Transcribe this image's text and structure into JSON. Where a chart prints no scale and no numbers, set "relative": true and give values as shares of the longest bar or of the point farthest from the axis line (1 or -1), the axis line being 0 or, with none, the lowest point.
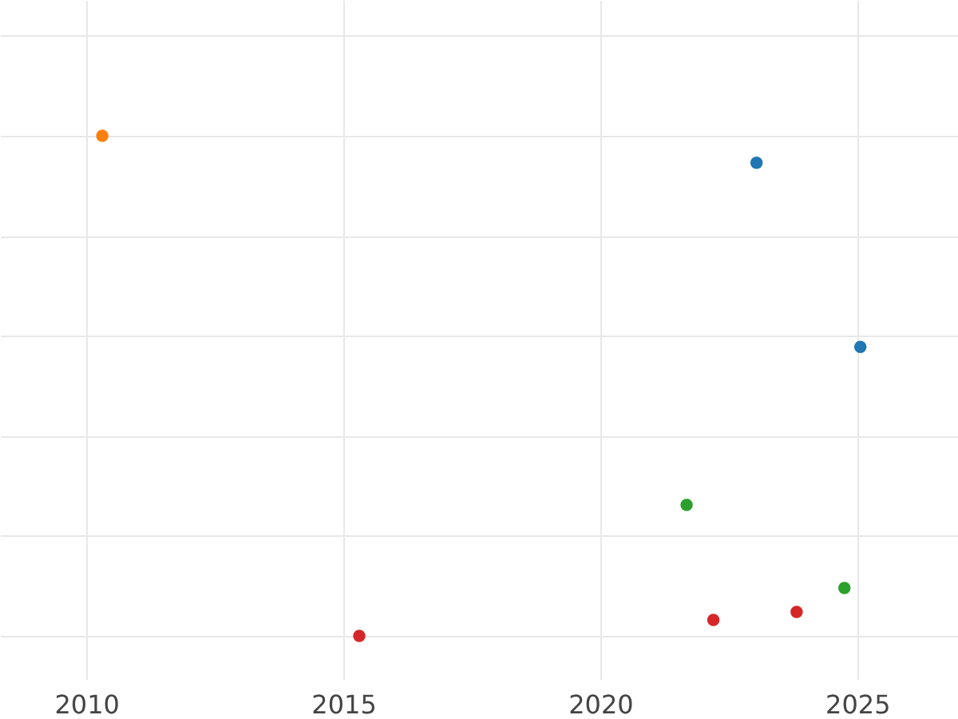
{
  "chart_data": {
    "type": "scatter",
    "relative": true,
    "xlim": [
      2008.32,
      2026.96
    ],
    "xticks": [
      2010,
      2015,
      2020,
      2025
    ],
    "tick_labels": "x",
    "grid": true,
    "legend": false,
    "marker": "circle",
    "series": [
      {
        "color": "#ff7f0e",
        "x": [
          2010.31
        ],
        "values": [
          1.0
        ]
      },
      {
        "color": "#1f77b4",
        "x": [
          2023.04,
          2025.06
        ],
        "values": [
          0.946,
          0.578
        ]
      },
      {
        "color": "#2ca02c",
        "x": [
          2021.68,
          2024.75
        ],
        "values": [
          0.262,
          0.096
        ]
      },
      {
        "color": "#d62728",
        "x": [
          2015.31,
          2022.2,
          2023.82
        ],
        "values": [
          0.0,
          0.032,
          0.048
        ]
      }
    ]
  }
}
